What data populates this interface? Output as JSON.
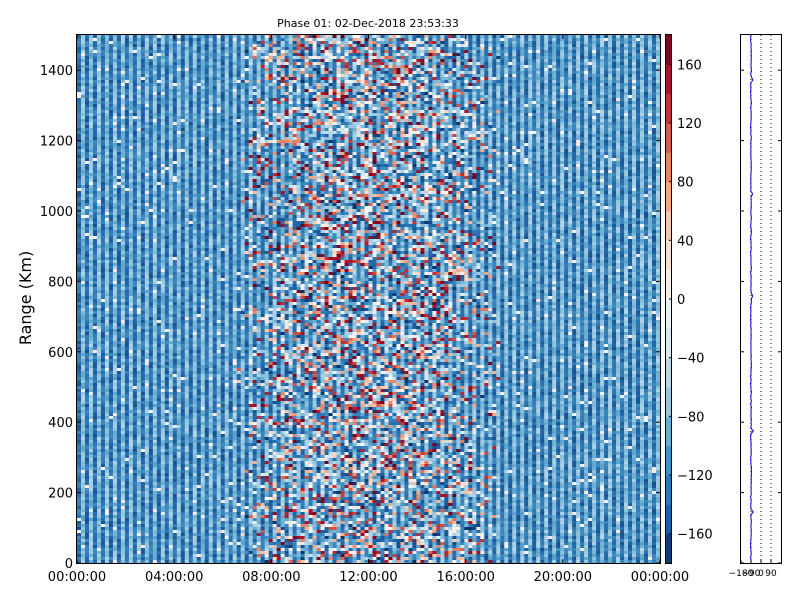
{
  "chart_data": [
    {
      "type": "heatmap",
      "title": "Phase 01: 02-Dec-2018 23:53:33",
      "ylabel": "Range (Km)",
      "xlabel": "",
      "x_ticks": [
        "00:00:00",
        "04:00:00",
        "08:00:00",
        "12:00:00",
        "16:00:00",
        "20:00:00",
        "00:00:00"
      ],
      "y_ticks": [
        0,
        200,
        400,
        600,
        800,
        1000,
        1200,
        1400
      ],
      "ylim": [
        0,
        1500
      ],
      "colorbar": {
        "colormap": "RdBu_r",
        "range": [
          -180,
          180
        ],
        "ticks": [
          -160,
          -120,
          -80,
          -40,
          0,
          40,
          80,
          120,
          160
        ]
      },
      "pattern": {
        "background_phase_deg": -100,
        "noisy_band_hours": [
          6.5,
          17.5
        ]
      }
    },
    {
      "type": "line",
      "title": "",
      "x_ticks": [
        "−180",
        "−90",
        "0",
        "90"
      ],
      "xlim": [
        -180,
        180
      ],
      "ylim": [
        0,
        1500
      ],
      "grid": true,
      "line_color": "#0000cc",
      "baseline_phase_deg": -90
    }
  ]
}
